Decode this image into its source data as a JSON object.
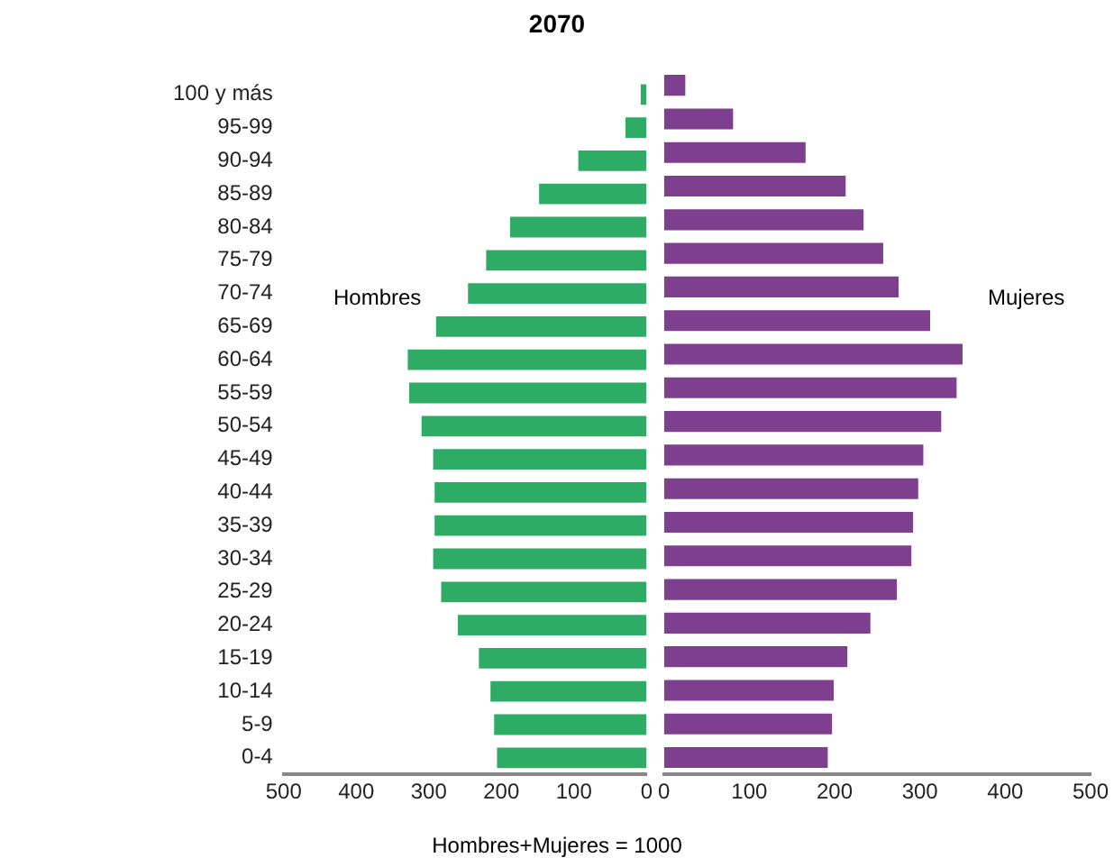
{
  "chart_data": [
    {
      "type": "bar",
      "orientation": "horizontal",
      "title": "2070",
      "annotations": [
        "Hombres+Mujeres = 1000"
      ],
      "categories": [
        "100 y más",
        "95-99",
        "90-94",
        "85-89",
        "80-84",
        "75-79",
        "70-74",
        "65-69",
        "60-64",
        "55-59",
        "50-54",
        "45-49",
        "40-44",
        "35-39",
        "30-34",
        "25-29",
        "20-24",
        "15-19",
        "10-14",
        "5-9",
        "0-4"
      ],
      "series": [
        {
          "name": "Hombres",
          "color": "#2eac66",
          "values": [
            8,
            29,
            94,
            148,
            188,
            221,
            246,
            290,
            329,
            327,
            310,
            294,
            292,
            292,
            294,
            283,
            260,
            231,
            215,
            210,
            206
          ]
        }
      ],
      "xlim": [
        500,
        0
      ],
      "xticks": [
        500,
        400,
        300,
        200,
        100,
        0
      ],
      "grid": false
    },
    {
      "type": "bar",
      "orientation": "horizontal",
      "categories": [
        null,
        null,
        null,
        null,
        null,
        null,
        null,
        null,
        null,
        null,
        null,
        null,
        null,
        null,
        null,
        null,
        null,
        null,
        null,
        null,
        null
      ],
      "series": [
        {
          "name": "Mujeres",
          "color": "#7f3f8f",
          "values": [
            25,
            81,
            166,
            213,
            234,
            257,
            275,
            312,
            350,
            343,
            325,
            304,
            298,
            292,
            290,
            273,
            242,
            215,
            199,
            197,
            192
          ]
        }
      ],
      "xlim": [
        0,
        500
      ],
      "xticks": [
        0,
        100,
        200,
        300,
        400,
        500
      ],
      "grid": false,
      "tick_labels": "x"
    }
  ]
}
